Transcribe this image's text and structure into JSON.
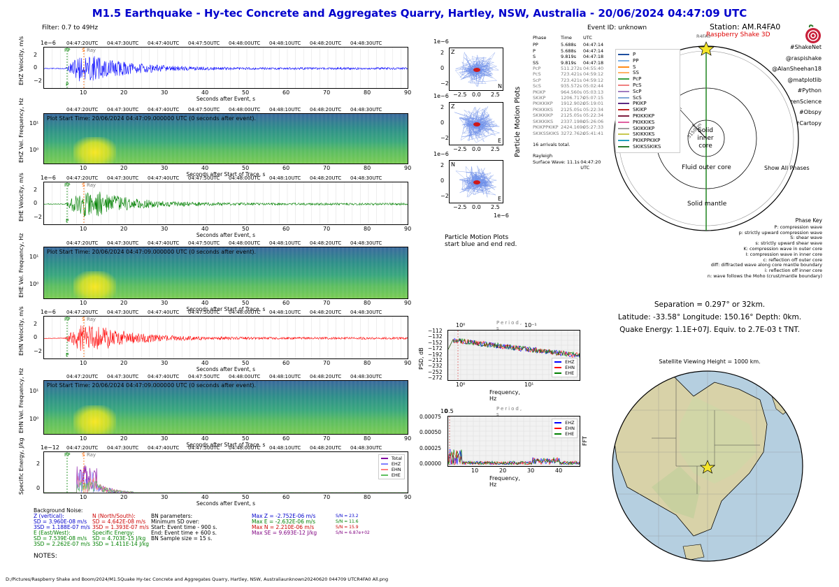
{
  "title": "M1.5 Earthquake - Hy-tec Concrete and Aggregates Quarry, Hartley, NSW, Australia -  20/06/2024 04:47:09 UTC",
  "filter": "Filter: 0.7 to 49Hz",
  "event_id": "Event ID: unknown",
  "station": "Station: AM.R4FA0",
  "device": "Raspberry Shake 3D",
  "hashtags": [
    "#ShakeNet",
    "@raspishake",
    "@AlanSheehan18",
    "@matplotlib",
    "#Python",
    "#CitizenScience",
    "#Obspy",
    "#Cartopy"
  ],
  "exponent_velocity": "1e−6",
  "exponent_energy": "1e−12",
  "time_ticks": [
    "04:47:20UTC",
    "04:47:30UTC",
    "04:47:40UTC",
    "04:47:50UTC",
    "04:48:00UTC",
    "04:48:10UTC",
    "04:48:20UTC",
    "04:48:30UTC"
  ],
  "traces": [
    {
      "ylabel": "EHZ Velocity, m/s",
      "xlabel": "Seconds after Event, s",
      "color": "#0000ff"
    },
    {
      "ylabel": "EHE Velocity, m/s",
      "xlabel": "Seconds after Event, s",
      "color": "#008000"
    },
    {
      "ylabel": "EHN Velocity, m/s",
      "xlabel": "Seconds after Event, s",
      "color": "#ff0000"
    }
  ],
  "spectrograms": [
    {
      "ylabel": "EHZ Vel. Frequency, Hz",
      "xlabel": "Seconds after Start of Trace, s"
    },
    {
      "ylabel": "EHE Vel. Frequency, Hz",
      "xlabel": "Seconds after Start of Trace, s"
    },
    {
      "ylabel": "EHN Vel. Frequency, Hz",
      "xlabel": "Seconds after Start of Trace, s"
    }
  ],
  "plot_start": "Plot Start Time:  20/06/2024 04:47:09.000000 UTC (0 seconds after event).",
  "phase_labels": {
    "pp": "PP",
    "p": "P",
    "s": "S",
    "ray": "Ray"
  },
  "energy": {
    "ylabel": "Specific Energy, J/kg",
    "xlabel": "Seconds after Event, s",
    "legend": [
      {
        "name": "Total",
        "color": "#8000a0"
      },
      {
        "name": "EHZ",
        "color": "#8080ff"
      },
      {
        "name": "EHN",
        "color": "#ff8080"
      },
      {
        "name": "EHE",
        "color": "#60c060"
      }
    ]
  },
  "particle_motion": {
    "label": "Particle Motion Plots",
    "note": [
      "Particle Motion Plots",
      "start blue and end red."
    ],
    "exponent": "1e−6",
    "plots": [
      {
        "v": "Z",
        "h": "N"
      },
      {
        "v": "Z",
        "h": "E"
      },
      {
        "v": "N",
        "h": "E"
      }
    ],
    "xticks": [
      "−2.5",
      "0.0",
      "2.5"
    ],
    "yticks": [
      "2",
      "0",
      "−2"
    ]
  },
  "arrivals": {
    "header": [
      "Phase",
      "Time",
      "UTC"
    ],
    "rows": [
      [
        "PP",
        "5.688s",
        "04:47:14"
      ],
      [
        "P",
        "5.688s",
        "04:47:14"
      ],
      [
        "S",
        "9.819s",
        "04:47:18"
      ],
      [
        "SS",
        "9.819s",
        "04:47:18"
      ],
      [
        "PcP",
        "511.272s",
        "04:55:40"
      ],
      [
        "PcS",
        "723.421s",
        "04:59:12"
      ],
      [
        "ScP",
        "723.421s",
        "04:59:12"
      ],
      [
        "ScS",
        "935.572s",
        "05:02:44"
      ],
      [
        "PKiKP",
        "964.560s",
        "05:03:13"
      ],
      [
        "SKiKP",
        "1206.717s",
        "05:07:15"
      ],
      [
        "PKIKKIKP",
        "1912.902s",
        "05:19:01"
      ],
      [
        "PKIKKIKS",
        "2125.05s",
        "05:22:34"
      ],
      [
        "SKIKKIKP",
        "2125.05s",
        "05:22:34"
      ],
      [
        "SKIKKIKS",
        "2337.198s",
        "05:26:06"
      ],
      [
        "PKIKPPKIKP",
        "2424.169s",
        "05:27:33"
      ],
      [
        "SKIKSSKIKS",
        "3272.762s",
        "05:41:41"
      ]
    ],
    "total": "16 arrivals total.",
    "rayleigh": "Rayleigh",
    "surface": "Surface Wave: 11.1s",
    "surface_utc": "04:47:20 UTC"
  },
  "earth": {
    "station_label": "R4FA0",
    "depth1": "2890km",
    "depth2": "5150km",
    "inner": [
      "Solid",
      "inner",
      "core"
    ],
    "outer": "Fluid outer core",
    "mantle": "Solid mantle",
    "show_all": "Show All Phases",
    "phases": [
      {
        "name": "P",
        "color": "#1f4fa0"
      },
      {
        "name": "PP",
        "color": "#7fb2e5"
      },
      {
        "name": "S",
        "color": "#ff8c1a"
      },
      {
        "name": "SS",
        "color": "#ffb266"
      },
      {
        "name": "PcP",
        "color": "#3aa040"
      },
      {
        "name": "PcS",
        "color": "#f08080"
      },
      {
        "name": "ScP",
        "color": "#a07cc0"
      },
      {
        "name": "ScS",
        "color": "#7fa8d8"
      },
      {
        "name": "PKiKP",
        "color": "#5a2a82"
      },
      {
        "name": "SKiKP",
        "color": "#c02020"
      },
      {
        "name": "PKIKKIKP",
        "color": "#802040"
      },
      {
        "name": "PKIKKIKS",
        "color": "#e060a0"
      },
      {
        "name": "SKIKKIKP",
        "color": "#a0a0a0"
      },
      {
        "name": "SKIKKIKS",
        "color": "#c8c850"
      },
      {
        "name": "PKIKPPKIKP",
        "color": "#20a0c0"
      },
      {
        "name": "SKIKSSKIKS",
        "color": "#2d7a2d"
      }
    ]
  },
  "phase_key": {
    "title": "Phase Key",
    "lines": [
      "P:   compression wave",
      "p:   strictly upward compression wave",
      "S:   shear wave",
      "s:   strictly upward shear wave",
      "K:   compression wave in outer core",
      "I:   compression wave in inner core",
      "c:   reflection off outer core",
      "diff:   diffracted wave along core mantle boundary",
      "i:   reflection off inner core",
      "n:   wave follows the Moho (crust/mantle boundary)"
    ]
  },
  "location": {
    "separation": "Separation = 0.297° or 32km.",
    "coords": "Latitude: -33.58° Longitude: 150.16° Depth: 0km.",
    "energy": "Quake Energy: 1.1E+07J. Equiv. to 2.7E-03 t TNT.",
    "sat": "Satellite Viewing Height = 1000 km."
  },
  "psd": {
    "ylabel": "PSD, dB",
    "xlabel": "Frequency, Hz",
    "period": "Period, s",
    "yticks": [
      "−112",
      "−132",
      "−152",
      "−172",
      "−192",
      "−212",
      "−232",
      "−252",
      "−272"
    ],
    "top_ticks": [
      "10⁰",
      "10⁻¹"
    ],
    "bottom_ticks": [
      "10⁰",
      "10¹"
    ],
    "legend": [
      {
        "name": "EHZ",
        "color": "#0000ff"
      },
      {
        "name": "EHN",
        "color": "#ff0000"
      },
      {
        "name": "EHE",
        "color": "#008000"
      }
    ]
  },
  "fft": {
    "ylabel": "FFT",
    "xlabel": "Frequency, Hz",
    "period": "Period, s",
    "yticks": [
      "0.00075",
      "0.00050",
      "0.00025",
      "0.00000"
    ],
    "xticks": [
      "10",
      "20",
      "30",
      "40"
    ],
    "top_ticks": [
      "10",
      "0.5"
    ],
    "legend": [
      {
        "name": "EHZ",
        "color": "#0000ff"
      },
      {
        "name": "EHN",
        "color": "#ff0000"
      },
      {
        "name": "EHE",
        "color": "#008000"
      }
    ]
  },
  "noise": {
    "z": [
      "Z (vertical):",
      "SD = 3.960E-08 m/s",
      "3SD = 1.188E-07 m/s"
    ],
    "n": [
      "N (North/South):",
      "SD = 4.642E-08 m/s",
      "3SD = 1.393E-07 m/s"
    ],
    "e": [
      "E (East/West):",
      "SD = 7.539E-08 m/s",
      "3SD = 2.262E-07 m/s"
    ],
    "se": [
      "Specific Energy:",
      "SD = 4.703E-15 J/kg",
      "3SD = 1.411E-14 J/kg"
    ],
    "heading": "Background Noise:",
    "bn": [
      "BN parameters:",
      "Minimum SD over:",
      "Start: Event time - 900 s.",
      "End: Event time + 600 s.",
      "BN Sample size = 15 s."
    ],
    "max": [
      [
        "Max Z = -2.752E-06 m/s",
        "#0000cc"
      ],
      [
        "Max E = -2.632E-06 m/s",
        "#008000"
      ],
      [
        "Max N = 2.210E-06 m/s",
        "#cc0000"
      ],
      [
        "Max SE = 9.693E-12 J/kg",
        "#800080"
      ]
    ],
    "sn": [
      [
        "S/N = 23.2",
        "#0000cc"
      ],
      [
        "S/N = 11.6",
        "#008000"
      ],
      [
        "S/N = 15.9",
        "#cc0000"
      ],
      [
        "S/N = 6.87e+02",
        "#800080"
      ]
    ]
  },
  "notes": "NOTES:",
  "filepath": "D:/Pictures/Raspberry Shake and Boom/2024/M1.5Quake Hy-tec Concrete and Aggregates Quarry, Hartley, NSW, Australiaunknown20240620 044709 UTCR4FA0 All.png"
}
